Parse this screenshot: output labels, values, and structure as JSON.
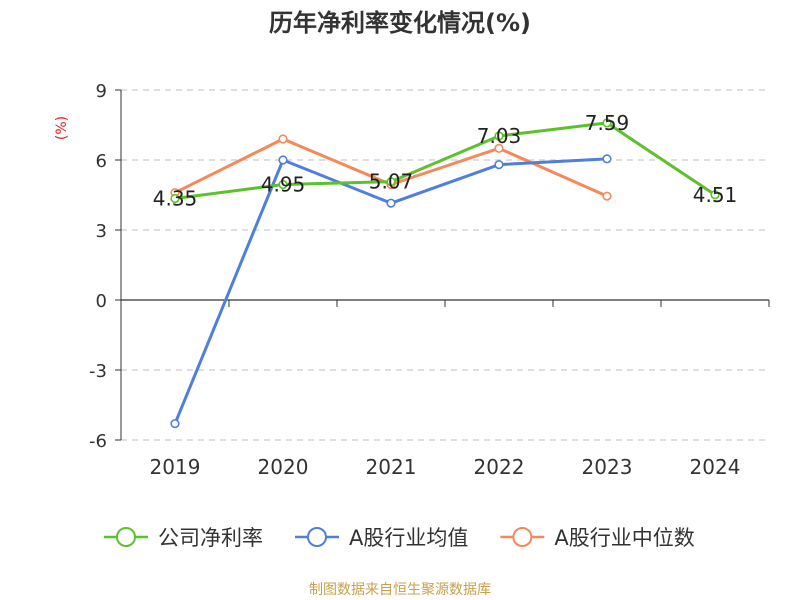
{
  "chart_data": {
    "type": "line",
    "title": "历年净利率变化情况(%)",
    "ylabel": "(%)",
    "xlabel": "",
    "categories": [
      "2019",
      "2020",
      "2021",
      "2022",
      "2023",
      "2024"
    ],
    "ylim": [
      -6,
      9
    ],
    "yticks": [
      -6,
      -3,
      0,
      3,
      6,
      9
    ],
    "grid": "horizontal dashed",
    "legend_position": "bottom",
    "series": [
      {
        "name": "公司净利率",
        "color": "#5cc22c",
        "values": [
          4.35,
          4.95,
          5.07,
          7.03,
          7.59,
          4.51
        ],
        "labels": [
          "4.35",
          "4.95",
          "5.07",
          "7.03",
          "7.59",
          "4.51"
        ]
      },
      {
        "name": "A股行业均值",
        "color": "#4f7fdc",
        "values": [
          -5.3,
          6.0,
          4.15,
          5.8,
          6.05,
          null
        ]
      },
      {
        "name": "A股行业中位数",
        "color": "#f5895a",
        "values": [
          4.6,
          6.9,
          4.95,
          6.5,
          4.45,
          null
        ]
      }
    ],
    "source": "制图数据来自恒生聚源数据库"
  },
  "colors": {
    "title": "#333333",
    "axis_text": "#333333",
    "ylabel": "#e02020",
    "grid": "#cccccc",
    "axis": "#333333",
    "source": "#c8a04a"
  }
}
